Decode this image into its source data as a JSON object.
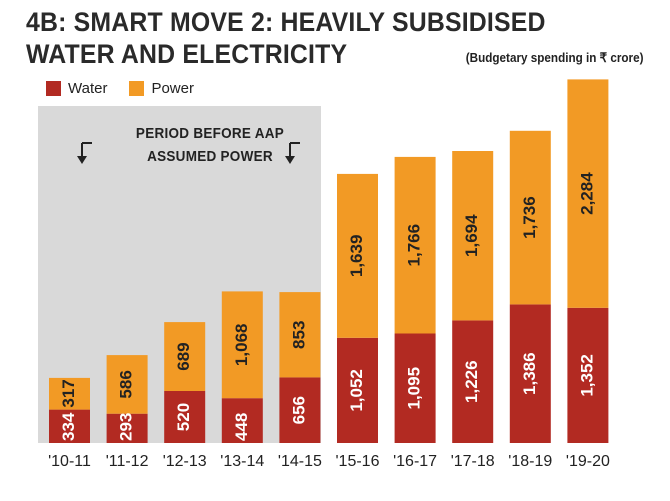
{
  "chart_data": {
    "type": "bar",
    "stacked": true,
    "title": "4B: SMART MOVE 2: HEAVILY SUBSIDISED WATER AND ELECTRICITY",
    "subtitle": "(Budgetary spending in ₹ crore)",
    "categories": [
      "'10-11",
      "'11-12",
      "'12-13",
      "'13-14",
      "'14-15",
      "'15-16",
      "'16-17",
      "'17-18",
      "'18-19",
      "'19-20"
    ],
    "series": [
      {
        "name": "Water",
        "color": "#b22a22",
        "values": [
          334,
          293,
          520,
          448,
          656,
          1052,
          1095,
          1226,
          1386,
          1352
        ],
        "labels": [
          "334",
          "293",
          "520",
          "448",
          "656",
          "1,052",
          "1,095",
          "1,226",
          "1,386",
          "1,352"
        ]
      },
      {
        "name": "Power",
        "color": "#f29a25",
        "values": [
          317,
          586,
          689,
          1068,
          853,
          1639,
          1766,
          1694,
          1736,
          2284
        ],
        "labels": [
          "317",
          "586",
          "689",
          "1,068",
          "853",
          "1,639",
          "1,766",
          "1,694",
          "1,736",
          "2,284"
        ]
      }
    ],
    "annotation": {
      "text_line1": "PERIOD BEFORE AAP",
      "text_line2": "ASSUMED POWER",
      "shade_color": "#d9d9d9"
    },
    "grid": false,
    "legend": "top-left"
  }
}
